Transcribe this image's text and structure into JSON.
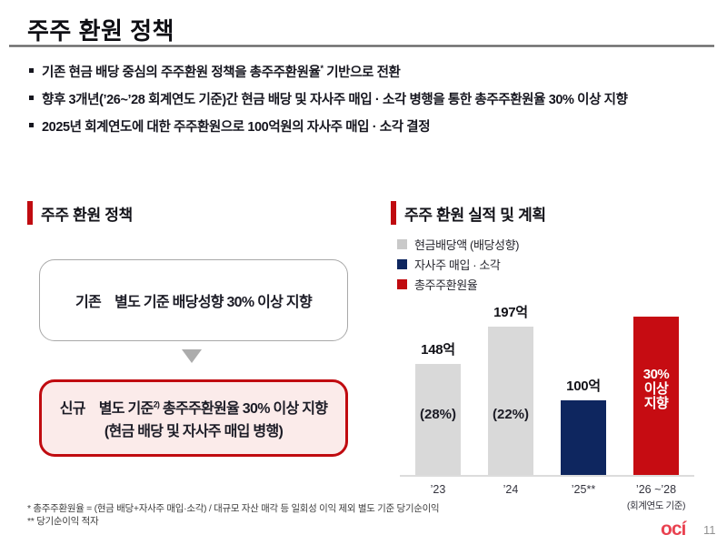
{
  "slide": {
    "title": "주주 환원 정책",
    "logo_text": "ocí",
    "page_number": "11"
  },
  "bullets": {
    "b1_pre": "기존 현금 배당 중심의 주주환원 정책을 총주주환원율",
    "b1_sup": "*",
    "b1_post": " 기반으로 전환",
    "b2": "향후 3개년(’26~’28 회계연도 기준)간 현금 배당 및 자사주 매입 · 소각 병행을 통한 총주주환원율 30% 이상 지향",
    "b3": "2025년 회계연도에 대한 주주환원으로 100억원의 자사주 매입 · 소각 결정"
  },
  "policy": {
    "heading": "주주 환원 정책",
    "old_label": "기존",
    "old_text": "별도 기준 배당성향 30% 이상 지향",
    "new_label": "신규",
    "new_pre": "별도 기준",
    "new_sup": "2)",
    "new_post": " 총주주환원율 30% 이상 지향",
    "new_line2": "(현금 배당 및 자사주 매입 병행)"
  },
  "chart": {
    "heading": "주주 환원 실적 및 계획",
    "legend": [
      {
        "label": "현금배당액 (배당성향)",
        "color": "#C9C9C9"
      },
      {
        "label": "자사주 매입 · 소각",
        "color": "#0E265F"
      },
      {
        "label": "총주주환원율",
        "color": "#C00B10"
      }
    ],
    "bars": [
      {
        "top_label": "148억",
        "inner_label": "(28%)",
        "category": "’23"
      },
      {
        "top_label": "197억",
        "inner_label": "(22%)",
        "category": "’24"
      },
      {
        "top_label": "100억",
        "inner_label": "",
        "category": "’25**"
      },
      {
        "top_label": "",
        "inner_label": "30%\n이상\n지향",
        "category": "’26 ~’28"
      }
    ],
    "axis_note": "(회계연도 기준)"
  },
  "chart_data": {
    "type": "bar",
    "title": "주주 환원 실적 및 계획",
    "categories": [
      "’23",
      "’24",
      "’25**",
      "’26 ~’28 (회계연도 기준)"
    ],
    "series": [
      {
        "name": "현금배당액 (배당성향)",
        "color": "#D9D9D9",
        "values": [
          148,
          197,
          null,
          null
        ],
        "payout_ratio_pct": [
          28,
          22,
          null,
          null
        ]
      },
      {
        "name": "자사주 매입 · 소각",
        "color": "#0E265F",
        "values": [
          null,
          null,
          100,
          null
        ]
      },
      {
        "name": "총주주환원율",
        "color": "#C60C12",
        "values": [
          null,
          null,
          null,
          "30% 이상 지향"
        ]
      }
    ],
    "unit": "억원",
    "legend_position": "top-left",
    "grid": false,
    "ylim": [
      0,
      210
    ]
  },
  "footnotes": {
    "line1": "* 총주주환원율 = (현금 배당+자사주 매입·소각) / 대규모 자산 매각 등 일회성 이익 제외 별도 기준 당기순이익",
    "line2": "** 당기순이익 적자"
  },
  "colors": {
    "accent_red": "#C00B10",
    "chart_red": "#C60C12",
    "navy": "#0E265F",
    "bar_gray": "#D9D9D9",
    "new_box_bg": "#FBEBEA",
    "logo_red": "#E94250"
  }
}
